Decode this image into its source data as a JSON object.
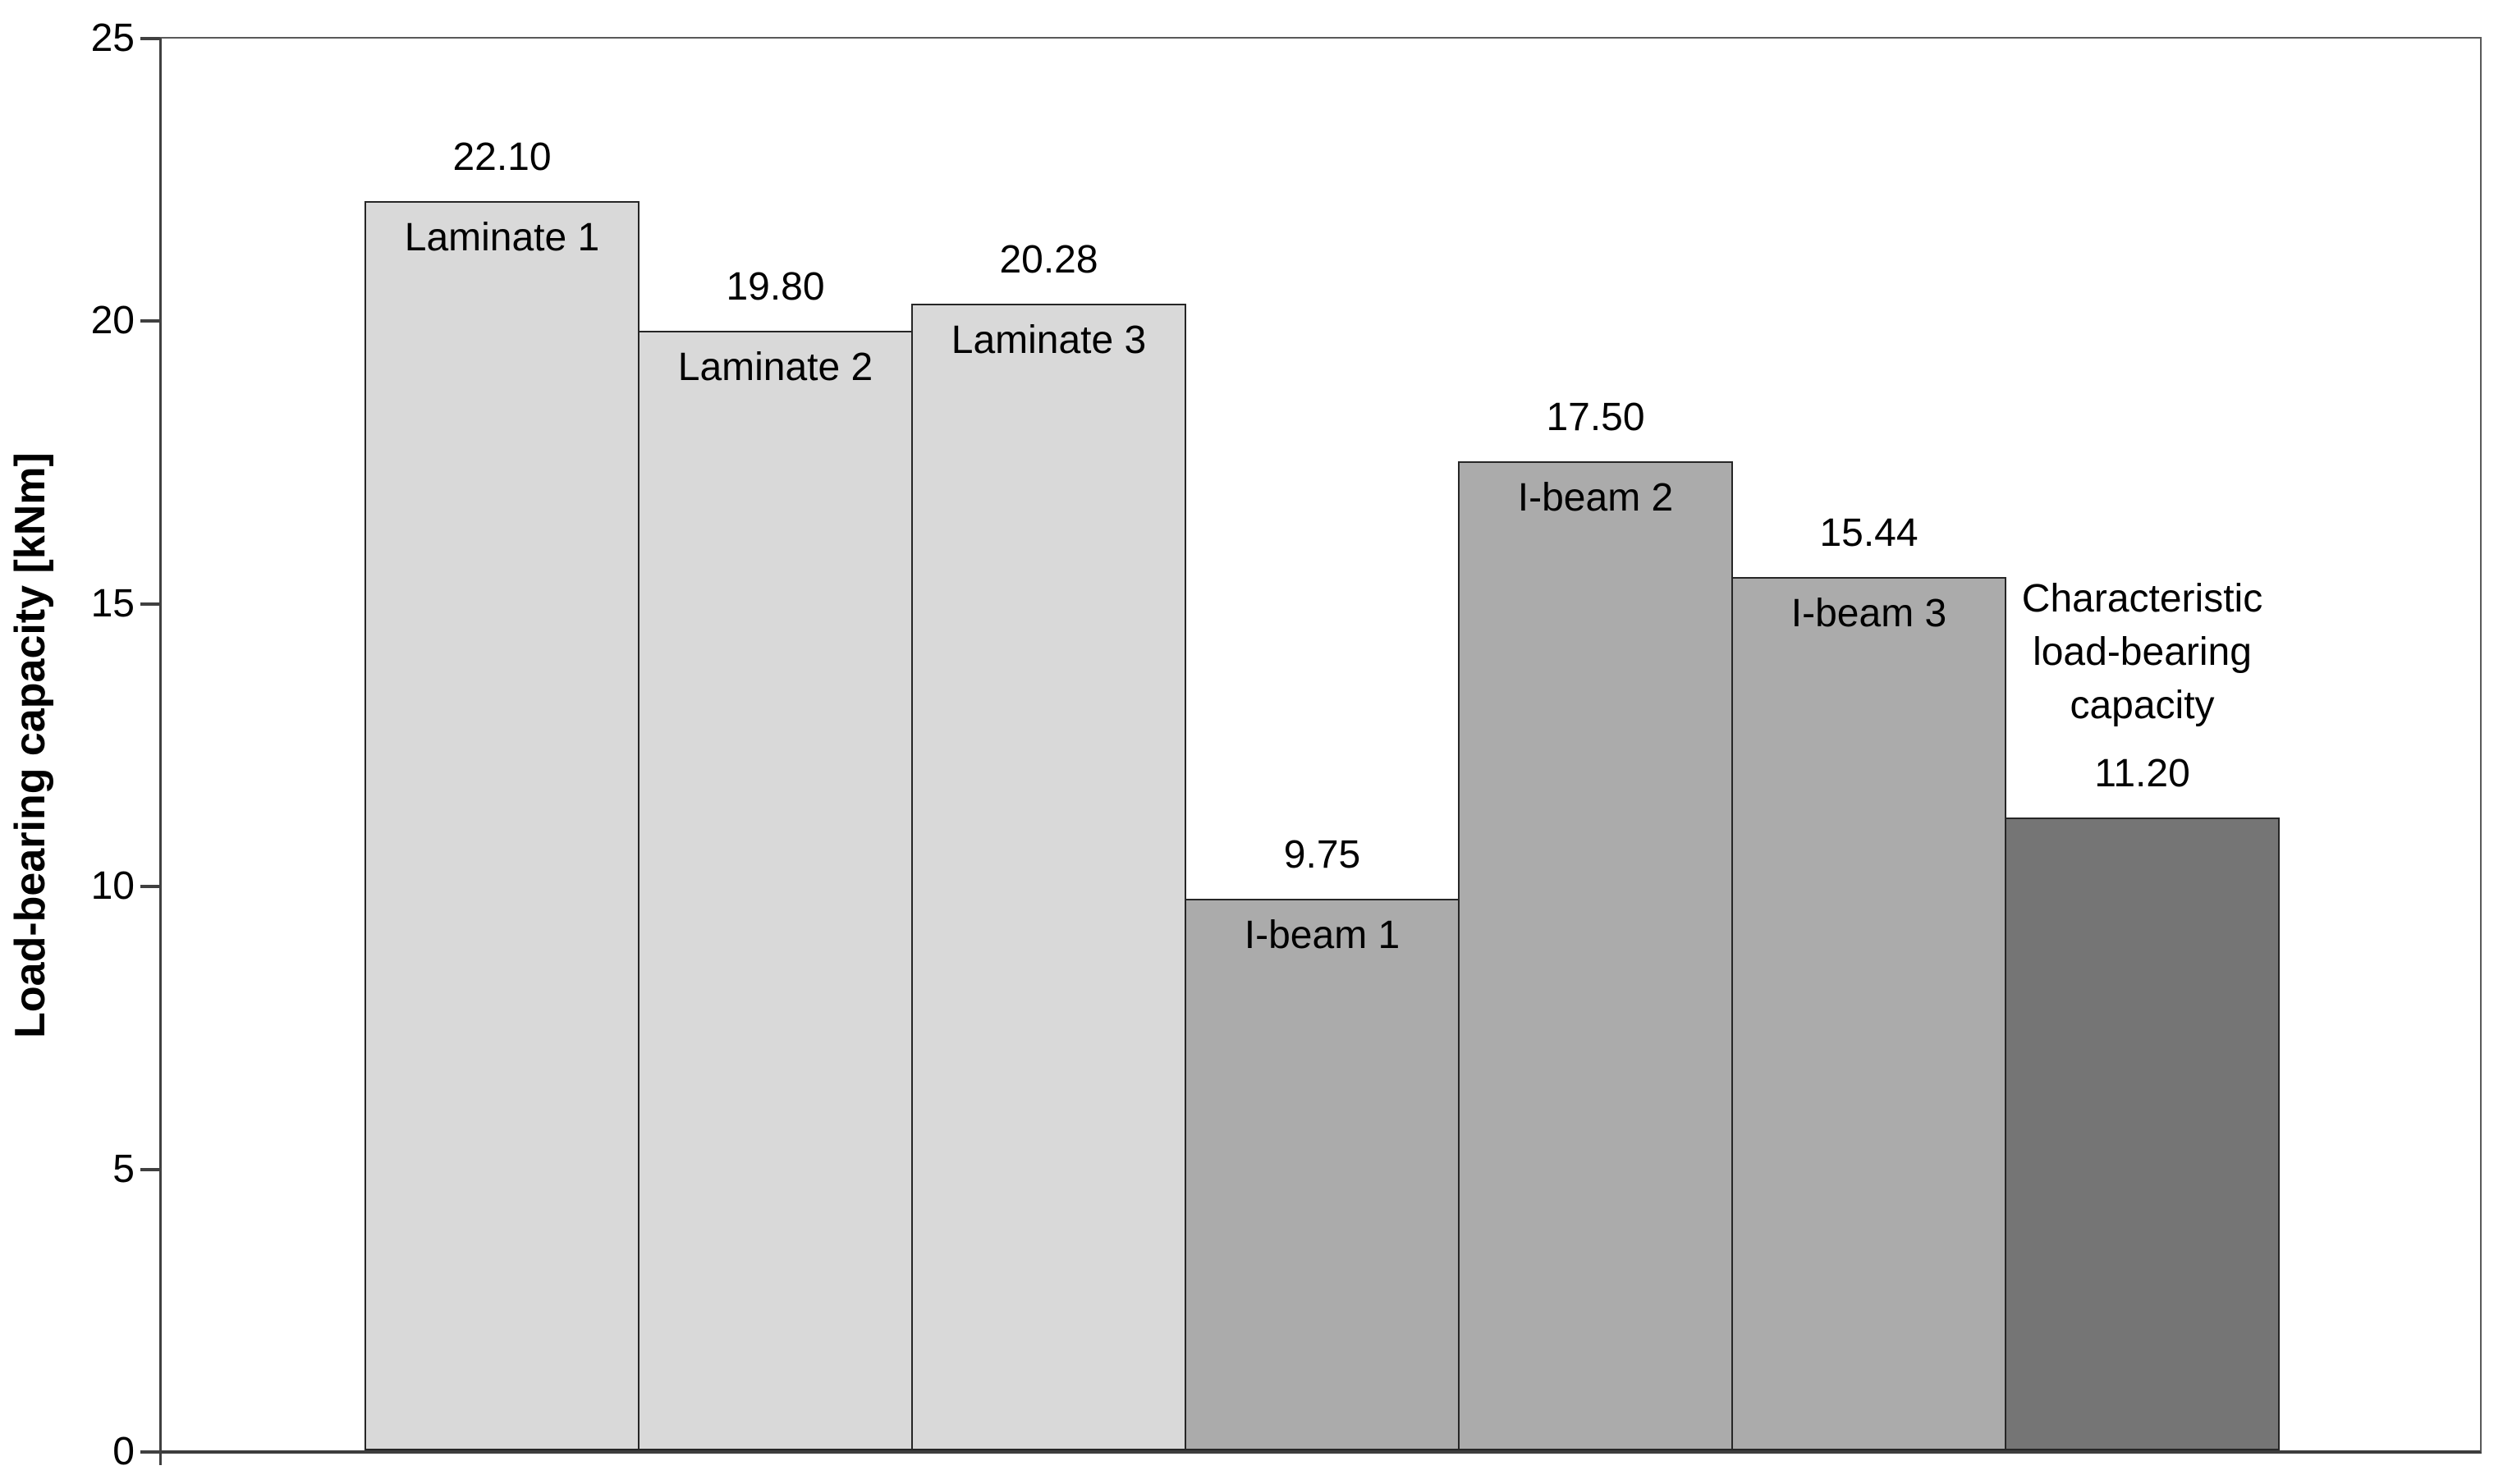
{
  "chart_data": {
    "type": "bar",
    "title": "",
    "xlabel": "",
    "ylabel": "Load-bearing capacity [kNm]",
    "ylim": [
      0,
      25
    ],
    "yticks": [
      "0",
      "5",
      "10",
      "15",
      "20",
      "25"
    ],
    "grid": false,
    "legend": "none",
    "categories": [
      "Laminate 1",
      "Laminate 2",
      "Laminate 3",
      "I-beam 1",
      "I-beam 2",
      "I-beam 3",
      "Characteristic load-bearing capacity"
    ],
    "values": [
      22.1,
      19.8,
      20.28,
      9.75,
      17.5,
      15.44,
      11.2
    ],
    "value_labels": [
      "22.10",
      "19.80",
      "20.28",
      "9.75",
      "17.50",
      "15.44",
      "11.20"
    ],
    "bar_colors": [
      "#d9d9d9",
      "#d9d9d9",
      "#d9d9d9",
      "#ababab",
      "#ababab",
      "#ababab",
      "#757575"
    ],
    "category_label_position": [
      "inside",
      "inside",
      "inside",
      "inside",
      "inside",
      "inside",
      "above"
    ],
    "axis_color": "#404040",
    "bar_border_color": "#262626",
    "text_color": "#000000",
    "bar_fill_legend": {
      "laminate_bars": "#d9d9d9",
      "ibeam_bars": "#ababab",
      "characteristic_bar": "#757575"
    }
  }
}
